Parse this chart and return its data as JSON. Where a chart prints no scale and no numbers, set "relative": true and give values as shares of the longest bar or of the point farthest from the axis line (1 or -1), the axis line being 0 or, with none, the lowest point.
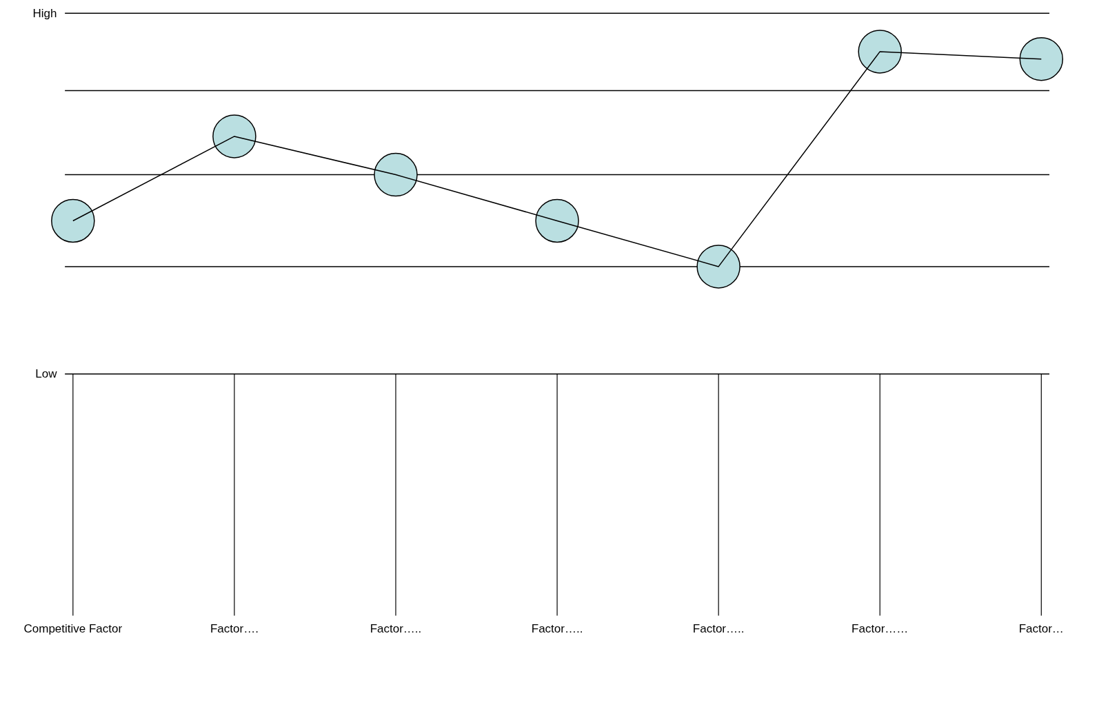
{
  "chart_data": {
    "type": "line",
    "relative": true,
    "categories": [
      "Competitive Factor",
      "Factor….",
      "Factor…..",
      "Factor…..",
      "Factor…..",
      "Factor……",
      "Factor…"
    ],
    "series": [
      {
        "type": "scatter",
        "color": "#badfe1",
        "values": [
          0.475,
          0.737,
          0.618,
          0.475,
          0.333,
          1.0,
          0.977
        ]
      },
      {
        "marker": "none",
        "color": "#000000",
        "values": [
          0.475,
          0.737,
          0.618,
          0.475,
          0.333,
          1.0,
          0.977
        ]
      }
    ],
    "marker": "circle",
    "line_style": "solid",
    "grid": false,
    "ref_lines": [
      {
        "axis": "y",
        "value": 0.333,
        "color": "#000000"
      },
      {
        "axis": "y",
        "value": 0.618,
        "color": "#000000"
      },
      {
        "axis": "y",
        "value": 0.879,
        "color": "#000000"
      },
      {
        "axis": "y",
        "value": 1.119,
        "color": "#000000"
      }
    ],
    "annotations": [
      "High",
      "Low"
    ]
  }
}
